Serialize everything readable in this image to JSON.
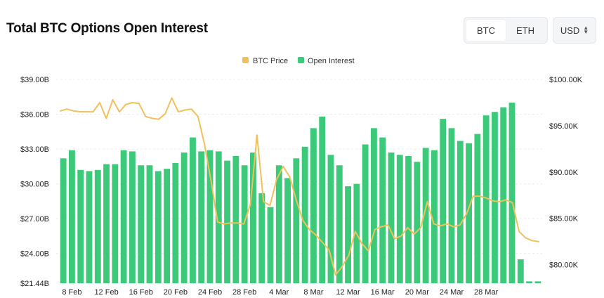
{
  "header": {
    "title": "Total BTC Options Open Interest",
    "asset_tabs": [
      {
        "label": "BTC",
        "active": true
      },
      {
        "label": "ETH",
        "active": false
      }
    ],
    "currency_select": "USD"
  },
  "colors": {
    "bars": "#3cc97a",
    "price_line": "#f0c15a",
    "grid": "#ececec"
  },
  "chart_data": {
    "type": "bar+line",
    "title": "",
    "legend": [
      "BTC Price",
      "Open Interest"
    ],
    "legend_position": "top-center",
    "x_tick_labels": [
      "8 Feb",
      "12 Feb",
      "16 Feb",
      "20 Feb",
      "24 Feb",
      "28 Feb",
      "4 Mar",
      "8 Mar",
      "12 Mar",
      "16 Mar",
      "20 Mar",
      "24 Mar",
      "28 Mar"
    ],
    "y_left_ticks": [
      "$39.00B",
      "$36.00B",
      "$33.00B",
      "$30.00B",
      "$27.00B",
      "$24.00B",
      "$21.44B"
    ],
    "y_left_range": [
      21.44,
      39.0
    ],
    "y_left_tick_values": [
      39.0,
      36.0,
      33.0,
      30.0,
      27.0,
      24.0,
      21.44
    ],
    "y_right_ticks": [
      "$100.00K",
      "$95.00K",
      "$90.00K",
      "$85.00K",
      "$80.00K"
    ],
    "y_right_range": [
      78.0,
      100.0
    ],
    "y_right_tick_values": [
      100,
      95,
      90,
      85,
      80
    ],
    "grid": true,
    "series": [
      {
        "name": "Open Interest",
        "type": "bar",
        "axis": "left",
        "values": [
          32.2,
          32.9,
          31.2,
          31.1,
          31.2,
          31.7,
          31.7,
          32.9,
          32.8,
          31.6,
          31.6,
          31.1,
          31.3,
          31.8,
          32.7,
          34.0,
          32.8,
          32.9,
          32.8,
          32.0,
          32.4,
          31.6,
          32.7,
          29.2,
          28.0,
          31.6,
          30.5,
          32.2,
          33.2,
          34.8,
          35.8,
          32.5,
          31.6,
          29.8,
          30.0,
          33.4,
          34.8,
          34.0,
          32.7,
          32.5,
          32.4,
          31.9,
          33.1,
          32.9,
          35.6,
          34.8,
          33.7,
          33.5,
          34.3,
          35.9,
          36.2,
          36.6,
          37.0,
          23.5,
          21.6,
          21.6
        ]
      },
      {
        "name": "BTC Price",
        "type": "line",
        "axis": "right",
        "values": [
          96.6,
          96.8,
          96.6,
          96.5,
          96.5,
          96.5,
          97.5,
          95.8,
          97.8,
          96.5,
          97.3,
          97.5,
          97.4,
          96.0,
          95.8,
          95.7,
          96.3,
          98.0,
          96.5,
          96.7,
          96.8,
          96.0,
          93.0,
          89.0,
          84.6,
          84.4,
          84.5,
          84.5,
          84.4,
          86.5,
          94.0,
          86.8,
          86.4,
          89.2,
          90.6,
          89.5,
          87.0,
          84.8,
          83.8,
          83.2,
          82.4,
          81.6,
          78.9,
          79.8,
          81.0,
          83.6,
          82.3,
          81.5,
          83.8,
          84.1,
          84.3,
          82.8,
          83.1,
          84.0,
          83.3,
          84.0,
          86.8,
          84.4,
          84.2,
          84.4,
          84.1,
          84.3,
          85.5,
          87.4,
          87.4,
          87.2,
          86.9,
          86.8,
          87.0,
          86.7,
          83.6,
          82.9,
          82.6,
          82.5
        ]
      }
    ]
  }
}
